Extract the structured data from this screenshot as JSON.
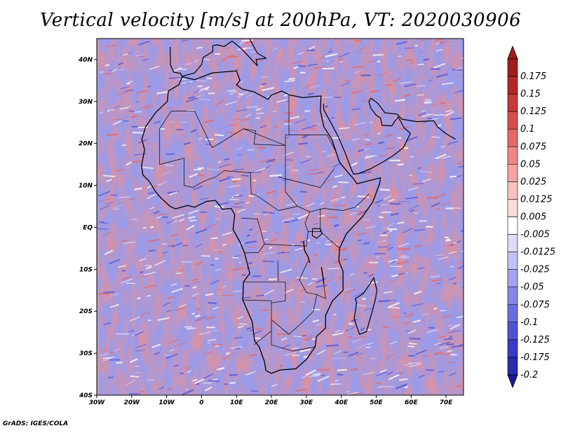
{
  "title": "Vertical velocity [m/s] at 200hPa, VT: 2020030906",
  "credit": "GrADS: IGES/COLA",
  "map": {
    "lon_range": [
      -30,
      75
    ],
    "lat_range": [
      -40,
      45
    ],
    "lon_ticks": [
      {
        "value": -30,
        "label": "30W"
      },
      {
        "value": -20,
        "label": "20W"
      },
      {
        "value": -10,
        "label": "10W"
      },
      {
        "value": 0,
        "label": "0"
      },
      {
        "value": 10,
        "label": "10E"
      },
      {
        "value": 20,
        "label": "20E"
      },
      {
        "value": 30,
        "label": "30E"
      },
      {
        "value": 40,
        "label": "40E"
      },
      {
        "value": 50,
        "label": "50E"
      },
      {
        "value": 60,
        "label": "60E"
      },
      {
        "value": 70,
        "label": "70E"
      }
    ],
    "lat_ticks": [
      {
        "value": 40,
        "label": "40N"
      },
      {
        "value": 30,
        "label": "30N"
      },
      {
        "value": 20,
        "label": "20N"
      },
      {
        "value": 10,
        "label": "10N"
      },
      {
        "value": 0,
        "label": "EQ"
      },
      {
        "value": -10,
        "label": "10S"
      },
      {
        "value": -20,
        "label": "20S"
      },
      {
        "value": -30,
        "label": "30S"
      },
      {
        "value": -40,
        "label": "40S"
      }
    ],
    "africa_outline_lonlat": [
      [
        -17.1,
        21.0
      ],
      [
        -16.0,
        24.0
      ],
      [
        -13.0,
        27.5
      ],
      [
        -9.8,
        30.0
      ],
      [
        -9.5,
        32.5
      ],
      [
        -6.5,
        34.0
      ],
      [
        -5.5,
        35.9
      ],
      [
        -2.0,
        35.2
      ],
      [
        3.0,
        36.8
      ],
      [
        10.0,
        37.3
      ],
      [
        11.0,
        35.0
      ],
      [
        10.0,
        34.0
      ],
      [
        11.5,
        33.0
      ],
      [
        15.0,
        32.3
      ],
      [
        19.0,
        30.5
      ],
      [
        20.0,
        31.5
      ],
      [
        23.0,
        32.5
      ],
      [
        25.0,
        31.6
      ],
      [
        29.0,
        30.9
      ],
      [
        32.5,
        31.2
      ],
      [
        34.2,
        31.3
      ],
      [
        34.0,
        27.8
      ],
      [
        35.0,
        24.0
      ],
      [
        37.3,
        21.0
      ],
      [
        38.5,
        18.0
      ],
      [
        39.5,
        15.5
      ],
      [
        42.5,
        12.5
      ],
      [
        43.3,
        11.8
      ],
      [
        44.5,
        10.4
      ],
      [
        51.2,
        11.8
      ],
      [
        51.0,
        10.5
      ],
      [
        49.0,
        6.0
      ],
      [
        46.0,
        2.5
      ],
      [
        41.5,
        -1.5
      ],
      [
        39.5,
        -5.0
      ],
      [
        39.3,
        -8.0
      ],
      [
        40.5,
        -10.5
      ],
      [
        40.5,
        -15.0
      ],
      [
        37.5,
        -17.5
      ],
      [
        35.5,
        -21.0
      ],
      [
        35.5,
        -24.0
      ],
      [
        32.9,
        -26.0
      ],
      [
        32.5,
        -28.5
      ],
      [
        30.0,
        -31.5
      ],
      [
        27.0,
        -33.7
      ],
      [
        22.5,
        -34.0
      ],
      [
        20.0,
        -34.8
      ],
      [
        18.4,
        -34.1
      ],
      [
        18.0,
        -32.0
      ],
      [
        16.5,
        -28.5
      ],
      [
        15.2,
        -27.0
      ],
      [
        14.5,
        -22.5
      ],
      [
        11.8,
        -17.3
      ],
      [
        12.0,
        -13.0
      ],
      [
        13.8,
        -11.0
      ],
      [
        12.3,
        -6.1
      ],
      [
        11.0,
        -3.5
      ],
      [
        9.0,
        -0.5
      ],
      [
        9.5,
        3.0
      ],
      [
        8.5,
        4.5
      ],
      [
        6.0,
        4.3
      ],
      [
        4.0,
        6.4
      ],
      [
        1.5,
        6.2
      ],
      [
        -2.0,
        4.8
      ],
      [
        -4.0,
        5.2
      ],
      [
        -7.5,
        4.4
      ],
      [
        -9.0,
        5.0
      ],
      [
        -11.5,
        6.9
      ],
      [
        -13.2,
        8.5
      ],
      [
        -15.0,
        11.0
      ],
      [
        -16.8,
        12.5
      ],
      [
        -17.2,
        14.7
      ],
      [
        -16.3,
        18.5
      ],
      [
        -17.1,
        21.0
      ]
    ],
    "arabia_outline_lonlat": [
      [
        34.9,
        29.5
      ],
      [
        35.0,
        28.0
      ],
      [
        37.0,
        25.0
      ],
      [
        39.2,
        21.5
      ],
      [
        41.0,
        18.0
      ],
      [
        42.8,
        14.0
      ],
      [
        43.5,
        12.7
      ],
      [
        45.0,
        12.8
      ],
      [
        48.5,
        14.0
      ],
      [
        52.2,
        15.7
      ],
      [
        55.0,
        17.2
      ],
      [
        57.8,
        19.0
      ],
      [
        59.8,
        22.4
      ],
      [
        58.0,
        23.7
      ],
      [
        56.3,
        26.3
      ],
      [
        55.5,
        25.5
      ],
      [
        54.5,
        24.2
      ],
      [
        51.7,
        24.3
      ],
      [
        51.2,
        26.1
      ],
      [
        50.0,
        26.7
      ],
      [
        48.4,
        28.5
      ],
      [
        47.9,
        30.0
      ],
      [
        48.5,
        30.8
      ],
      [
        50.5,
        29.5
      ],
      [
        52.5,
        27.3
      ],
      [
        56.0,
        27.0
      ],
      [
        57.3,
        25.8
      ],
      [
        61.6,
        25.2
      ],
      [
        66.5,
        25.4
      ],
      [
        67.5,
        24.0
      ],
      [
        70.0,
        22.3
      ],
      [
        72.7,
        21.0
      ]
    ],
    "madagascar_outline_lonlat": [
      [
        49.3,
        -12.0
      ],
      [
        50.2,
        -15.0
      ],
      [
        49.8,
        -17.0
      ],
      [
        48.7,
        -20.5
      ],
      [
        47.2,
        -24.9
      ],
      [
        45.2,
        -25.5
      ],
      [
        43.7,
        -21.8
      ],
      [
        44.4,
        -18.0
      ],
      [
        44.0,
        -17.0
      ],
      [
        46.3,
        -15.8
      ],
      [
        47.8,
        -14.0
      ],
      [
        49.3,
        -12.0
      ]
    ],
    "europe_coast_lonlat": [
      [
        -9.0,
        43.0
      ],
      [
        -8.9,
        38.7
      ],
      [
        -8.0,
        37.0
      ],
      [
        -6.0,
        36.7
      ],
      [
        -5.6,
        36.0
      ],
      [
        -2.0,
        36.8
      ],
      [
        0.0,
        38.8
      ],
      [
        0.5,
        40.5
      ],
      [
        3.2,
        41.9
      ],
      [
        3.2,
        43.3
      ],
      [
        4.5,
        43.5
      ],
      [
        6.5,
        43.1
      ],
      [
        8.7,
        44.4
      ],
      [
        10.3,
        43.4
      ],
      [
        12.3,
        41.8
      ],
      [
        16.0,
        38.5
      ],
      [
        15.6,
        40.0
      ],
      [
        18.5,
        40.3
      ],
      [
        16.0,
        41.5
      ],
      [
        13.7,
        45.0
      ]
    ],
    "lake_victoria_lonlat": [
      [
        31.8,
        -0.3
      ],
      [
        34.0,
        -0.3
      ],
      [
        34.5,
        -1.5
      ],
      [
        33.0,
        -2.6
      ],
      [
        31.7,
        -2.0
      ],
      [
        31.8,
        -0.3
      ]
    ],
    "rift_lakes_lonlat": [
      [
        [
          29.2,
          -3.3
        ],
        [
          29.5,
          -5.5
        ],
        [
          30.5,
          -7.0
        ],
        [
          31.0,
          -8.5
        ]
      ],
      [
        [
          34.3,
          -9.5
        ],
        [
          34.7,
          -11.5
        ],
        [
          35.0,
          -13.5
        ]
      ]
    ],
    "borders_lonlat": [
      [
        [
          -8.7,
          27.7
        ],
        [
          -2.0,
          27.7
        ],
        [
          3.0,
          19.0
        ],
        [
          4.2,
          19.5
        ],
        [
          12.0,
          23.5
        ],
        [
          24.0,
          19.5
        ]
      ],
      [
        [
          -5.0,
          16.5
        ],
        [
          -12.0,
          15.0
        ],
        [
          -12.0,
          23.5
        ],
        [
          -8.7,
          27.7
        ]
      ],
      [
        [
          -5.0,
          16.5
        ],
        [
          -5.0,
          10.0
        ],
        [
          -2.5,
          9.5
        ],
        [
          0.7,
          11.0
        ],
        [
          4.0,
          12.0
        ],
        [
          6.5,
          13.5
        ],
        [
          14.0,
          13.0
        ],
        [
          14.2,
          8.0
        ]
      ],
      [
        [
          12.0,
          23.5
        ],
        [
          15.5,
          23.0
        ],
        [
          15.0,
          19.8
        ],
        [
          24.0,
          19.5
        ],
        [
          24.0,
          8.5
        ]
      ],
      [
        [
          25.0,
          31.6
        ],
        [
          25.0,
          22.0
        ],
        [
          36.0,
          22.0
        ]
      ],
      [
        [
          24.0,
          8.5
        ],
        [
          27.5,
          5.0
        ],
        [
          31.0,
          3.7
        ],
        [
          35.0,
          4.5
        ],
        [
          40.5,
          4.0
        ],
        [
          44.0,
          4.8
        ],
        [
          48.0,
          8.0
        ]
      ],
      [
        [
          24.0,
          19.5
        ],
        [
          24.0,
          22.0
        ],
        [
          36.0,
          22.0
        ],
        [
          38.5,
          18.0
        ]
      ],
      [
        [
          22.0,
          12.0
        ],
        [
          34.0,
          9.5
        ],
        [
          38.0,
          14.0
        ]
      ],
      [
        [
          14.2,
          8.0
        ],
        [
          16.0,
          7.5
        ],
        [
          22.0,
          4.0
        ],
        [
          27.5,
          5.0
        ]
      ],
      [
        [
          11.3,
          2.2
        ],
        [
          16.0,
          2.0
        ],
        [
          18.0,
          -4.0
        ],
        [
          16.3,
          -6.0
        ],
        [
          12.3,
          -6.1
        ]
      ],
      [
        [
          18.0,
          -4.0
        ],
        [
          30.0,
          -4.5
        ],
        [
          30.5,
          -1.0
        ],
        [
          29.6,
          1.0
        ],
        [
          31.0,
          3.7
        ]
      ],
      [
        [
          30.5,
          -1.0
        ],
        [
          34.0,
          -1.0
        ],
        [
          34.0,
          4.5
        ]
      ],
      [
        [
          34.0,
          -1.0
        ],
        [
          39.5,
          -5.0
        ]
      ],
      [
        [
          21.8,
          -8.0
        ],
        [
          22.0,
          -13.0
        ],
        [
          24.0,
          -13.0
        ],
        [
          24.0,
          -17.5
        ],
        [
          20.0,
          -18.0
        ]
      ],
      [
        [
          12.0,
          -13.0
        ],
        [
          21.8,
          -13.0
        ]
      ],
      [
        [
          11.8,
          -17.3
        ],
        [
          20.0,
          -17.5
        ],
        [
          20.0,
          -22.0
        ],
        [
          20.0,
          -24.7
        ],
        [
          15.0,
          -28.0
        ]
      ],
      [
        [
          20.0,
          -22.0
        ],
        [
          25.0,
          -25.5
        ],
        [
          29.0,
          -22.5
        ],
        [
          32.0,
          -20.0
        ],
        [
          33.0,
          -16.0
        ],
        [
          30.0,
          -15.5
        ],
        [
          28.0,
          -12.5
        ],
        [
          30.5,
          -8.0
        ]
      ],
      [
        [
          20.0,
          -24.7
        ],
        [
          20.0,
          -28.0
        ],
        [
          26.0,
          -29.5
        ],
        [
          32.5,
          -28.5
        ]
      ],
      [
        [
          35.0,
          -13.5
        ],
        [
          35.5,
          -17.0
        ],
        [
          33.0,
          -16.0
        ]
      ]
    ]
  },
  "colorbar": {
    "levels": [
      {
        "label": "0.175",
        "color": "#a01c1c"
      },
      {
        "label": "0.15",
        "color": "#b52727"
      },
      {
        "label": "0.125",
        "color": "#c83838"
      },
      {
        "label": "0.1",
        "color": "#d84c4c"
      },
      {
        "label": "0.075",
        "color": "#e66767"
      },
      {
        "label": "0.05",
        "color": "#ef8585"
      },
      {
        "label": "0.025",
        "color": "#f5a3a3"
      },
      {
        "label": "0.0125",
        "color": "#f9c1c1"
      },
      {
        "label": "0.005",
        "color": "#fcdcdc"
      },
      {
        "label": "-0.005",
        "color": "#ffffff"
      },
      {
        "label": "-0.0125",
        "color": "#dcdcfa"
      },
      {
        "label": "-0.025",
        "color": "#c1c1f5"
      },
      {
        "label": "-0.05",
        "color": "#a3a3ef"
      },
      {
        "label": "-0.075",
        "color": "#8585e8"
      },
      {
        "label": "-0.1",
        "color": "#6b6be0"
      },
      {
        "label": "-0.125",
        "color": "#5151d6"
      },
      {
        "label": "-0.175",
        "color": "#3a3ac8"
      },
      {
        "label": "-0.2",
        "color": "#2a2aaa"
      }
    ],
    "top_color": "#a01c1c",
    "bottom_color": "#1a1a96"
  }
}
